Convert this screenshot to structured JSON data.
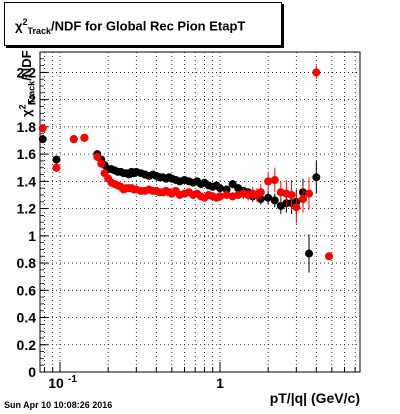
{
  "title": {
    "chi": "χ",
    "sup": "2",
    "sub": "Track",
    "rest": "/NDF for Global Rec Pion EtapT"
  },
  "ylabel": {
    "chi": "χ",
    "sup": "2",
    "sub": "Track",
    "rest": "/NDF"
  },
  "xlabel": "pT/|q| (GeV/c)",
  "timestamp": "Sun Apr 10 10:08:26 2016",
  "colors": {
    "black_series": "#000000",
    "red_series": "#ff0000",
    "grid": "#000000"
  },
  "chart_data": {
    "type": "scatter",
    "xlabel": "pT/|q| (GeV/c)",
    "ylabel": "χ2Track/NDF",
    "xscale": "log",
    "xlim": [
      0.075,
      7.5
    ],
    "ylim": [
      0,
      2.35
    ],
    "grid": true,
    "y_ticks": [
      "0",
      "0.2",
      "0.4",
      "0.6",
      "0.8",
      "1",
      "1.2",
      "1.4",
      "1.6",
      "1.8",
      "2",
      "2.2"
    ],
    "x_ticks": [
      "10-1",
      "1"
    ],
    "series": [
      {
        "color": "#000000",
        "x": [
          0.078,
          0.095,
          0.122,
          0.142,
          0.171,
          0.181,
          0.19,
          0.2,
          0.21,
          0.22,
          0.23,
          0.24,
          0.25,
          0.26,
          0.27,
          0.28,
          0.29,
          0.3,
          0.32,
          0.34,
          0.36,
          0.38,
          0.4,
          0.42,
          0.44,
          0.46,
          0.48,
          0.5,
          0.53,
          0.56,
          0.6,
          0.64,
          0.68,
          0.72,
          0.76,
          0.8,
          0.85,
          0.9,
          0.95,
          1.0,
          1.1,
          1.2,
          1.3,
          1.4,
          1.5,
          1.6,
          1.7,
          1.8,
          2.0,
          2.2,
          2.4,
          2.6,
          2.8,
          3.0,
          3.3,
          3.6,
          4.0
        ],
        "y": [
          1.71,
          1.56,
          1.71,
          1.72,
          1.6,
          1.56,
          1.52,
          1.49,
          1.49,
          1.48,
          1.47,
          1.47,
          1.46,
          1.46,
          1.45,
          1.47,
          1.46,
          1.47,
          1.46,
          1.45,
          1.44,
          1.45,
          1.44,
          1.43,
          1.43,
          1.42,
          1.43,
          1.42,
          1.41,
          1.4,
          1.41,
          1.4,
          1.39,
          1.4,
          1.38,
          1.39,
          1.37,
          1.36,
          1.37,
          1.35,
          1.34,
          1.38,
          1.35,
          1.33,
          1.32,
          1.29,
          1.3,
          1.27,
          1.28,
          1.26,
          1.22,
          1.24,
          1.24,
          1.25,
          1.32,
          0.87,
          1.43
        ],
        "yerr": [
          0.03,
          0.03,
          0.02,
          0.02,
          0.02,
          0.01,
          0.01,
          0.01,
          0.01,
          0.01,
          0.01,
          0.01,
          0.01,
          0.01,
          0.01,
          0.01,
          0.01,
          0.01,
          0.01,
          0.01,
          0.01,
          0.01,
          0.01,
          0.01,
          0.01,
          0.01,
          0.01,
          0.01,
          0.01,
          0.01,
          0.01,
          0.01,
          0.01,
          0.01,
          0.01,
          0.02,
          0.02,
          0.02,
          0.02,
          0.02,
          0.02,
          0.03,
          0.03,
          0.03,
          0.03,
          0.04,
          0.04,
          0.04,
          0.05,
          0.05,
          0.06,
          0.07,
          0.08,
          0.09,
          0.1,
          0.14,
          0.12
        ]
      },
      {
        "color": "#ff0000",
        "x": [
          0.078,
          0.095,
          0.122,
          0.142,
          0.171,
          0.181,
          0.19,
          0.2,
          0.21,
          0.22,
          0.23,
          0.24,
          0.25,
          0.26,
          0.27,
          0.28,
          0.29,
          0.3,
          0.32,
          0.34,
          0.36,
          0.38,
          0.4,
          0.42,
          0.44,
          0.46,
          0.48,
          0.5,
          0.53,
          0.56,
          0.6,
          0.64,
          0.68,
          0.72,
          0.76,
          0.8,
          0.85,
          0.9,
          0.95,
          1.0,
          1.1,
          1.2,
          1.3,
          1.4,
          1.5,
          1.6,
          1.7,
          1.8,
          2.0,
          2.2,
          2.4,
          2.6,
          2.8,
          3.0,
          3.3,
          3.6,
          4.0,
          4.8
        ],
        "y": [
          1.79,
          1.5,
          1.71,
          1.72,
          1.58,
          1.53,
          1.46,
          1.42,
          1.39,
          1.38,
          1.37,
          1.36,
          1.34,
          1.35,
          1.35,
          1.35,
          1.34,
          1.34,
          1.33,
          1.33,
          1.34,
          1.33,
          1.33,
          1.32,
          1.32,
          1.33,
          1.32,
          1.31,
          1.33,
          1.3,
          1.31,
          1.32,
          1.3,
          1.31,
          1.29,
          1.28,
          1.3,
          1.29,
          1.28,
          1.29,
          1.3,
          1.29,
          1.3,
          1.31,
          1.3,
          1.31,
          1.3,
          1.32,
          1.4,
          1.41,
          1.32,
          1.31,
          1.3,
          1.21,
          1.27,
          1.31,
          2.2,
          0.85
        ],
        "yerr": [
          0.03,
          0.03,
          0.02,
          0.02,
          0.02,
          0.01,
          0.01,
          0.01,
          0.01,
          0.01,
          0.01,
          0.01,
          0.01,
          0.01,
          0.01,
          0.01,
          0.01,
          0.01,
          0.01,
          0.01,
          0.01,
          0.01,
          0.01,
          0.01,
          0.01,
          0.01,
          0.01,
          0.01,
          0.01,
          0.01,
          0.01,
          0.01,
          0.01,
          0.02,
          0.02,
          0.02,
          0.02,
          0.02,
          0.02,
          0.02,
          0.03,
          0.03,
          0.03,
          0.04,
          0.04,
          0.05,
          0.05,
          0.06,
          0.07,
          0.09,
          0.08,
          0.1,
          0.11,
          0.12,
          0.1,
          0.12,
          0.05,
          0.02
        ]
      }
    ]
  }
}
